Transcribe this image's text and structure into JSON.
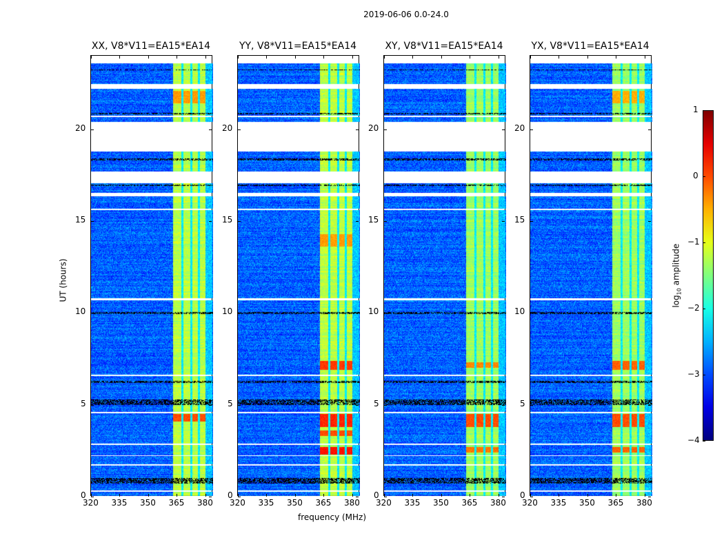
{
  "title": "2019-06-06 0.0-24.0",
  "chart_data": {
    "type": "heatmap",
    "title": "2019-06-06 0.0-24.0",
    "xlabel": "frequency (MHz)",
    "ylabel": "UT (hours)",
    "xlim": [
      320,
      384
    ],
    "ylim": [
      0,
      24
    ],
    "xticks": [
      320,
      335,
      350,
      365,
      380
    ],
    "yticks": [
      0,
      5,
      10,
      15,
      20
    ],
    "panels": [
      {
        "title": "XX, V8*V11=EA15*EA14",
        "hotspots": [
          [
            4.1,
            4.5,
            0.0
          ],
          [
            21.4,
            22.1,
            -0.4
          ]
        ]
      },
      {
        "title": "YY, V8*V11=EA15*EA14",
        "hotspots": [
          [
            3.8,
            4.5,
            0.2
          ],
          [
            2.3,
            2.7,
            0.3
          ],
          [
            6.9,
            7.4,
            0.1
          ],
          [
            13.6,
            14.3,
            -0.4
          ],
          [
            3.3,
            3.6,
            0.0
          ]
        ]
      },
      {
        "title": "XY, V8*V11=EA15*EA14",
        "hotspots": [
          [
            3.8,
            4.5,
            0.0
          ],
          [
            2.4,
            2.7,
            -0.2
          ],
          [
            7.0,
            7.3,
            -0.3
          ]
        ]
      },
      {
        "title": "YX, V8*V11=EA15*EA14",
        "hotspots": [
          [
            3.8,
            4.5,
            0.0
          ],
          [
            2.4,
            2.7,
            -0.1
          ],
          [
            6.9,
            7.4,
            -0.1
          ],
          [
            21.4,
            22.1,
            -0.5
          ]
        ]
      }
    ],
    "background_log_amplitude": -2.9,
    "rfi_band_mhz": [
      363,
      380
    ],
    "rfi_band_log_amplitude": -1.2,
    "band_notches_mhz": [
      368,
      372.5,
      376.5
    ],
    "flagged_hours": [
      [
        16.35,
        16.55
      ],
      [
        17.05,
        17.7
      ],
      [
        18.8,
        20.4
      ],
      [
        20.65,
        20.75
      ],
      [
        22.2,
        22.45
      ],
      [
        23.6,
        24.0
      ],
      [
        10.7,
        10.8
      ],
      [
        6.55,
        6.62
      ],
      [
        2.8,
        2.88
      ],
      [
        15.6,
        15.68
      ],
      [
        4.55,
        4.6
      ],
      [
        0.28,
        0.32
      ],
      [
        1.7,
        1.75
      ],
      [
        2.2,
        2.25
      ]
    ],
    "dark_hours": [
      [
        5.0,
        5.3
      ],
      [
        0.7,
        1.0
      ],
      [
        9.95,
        10.05
      ],
      [
        6.2,
        6.3
      ],
      [
        18.3,
        18.4
      ],
      [
        20.8,
        20.9
      ],
      [
        23.2,
        23.25
      ],
      [
        16.9,
        16.98
      ]
    ],
    "colorbar": {
      "label": "log10 amplitude",
      "range": [
        -4,
        1
      ],
      "ticks": [
        1,
        0,
        -1,
        -2,
        -3,
        -4
      ],
      "tick_labels": [
        "1",
        "0",
        "−1",
        "−2",
        "−3",
        "−4"
      ],
      "colormap": "jet"
    }
  },
  "labels": {
    "xticks": [
      "320",
      "335",
      "350",
      "365",
      "380"
    ],
    "yticks": [
      "0",
      "5",
      "10",
      "15",
      "20"
    ],
    "cbar_label_main": "log",
    "cbar_label_sub": "10",
    "cbar_label_rest": " amplitude"
  }
}
